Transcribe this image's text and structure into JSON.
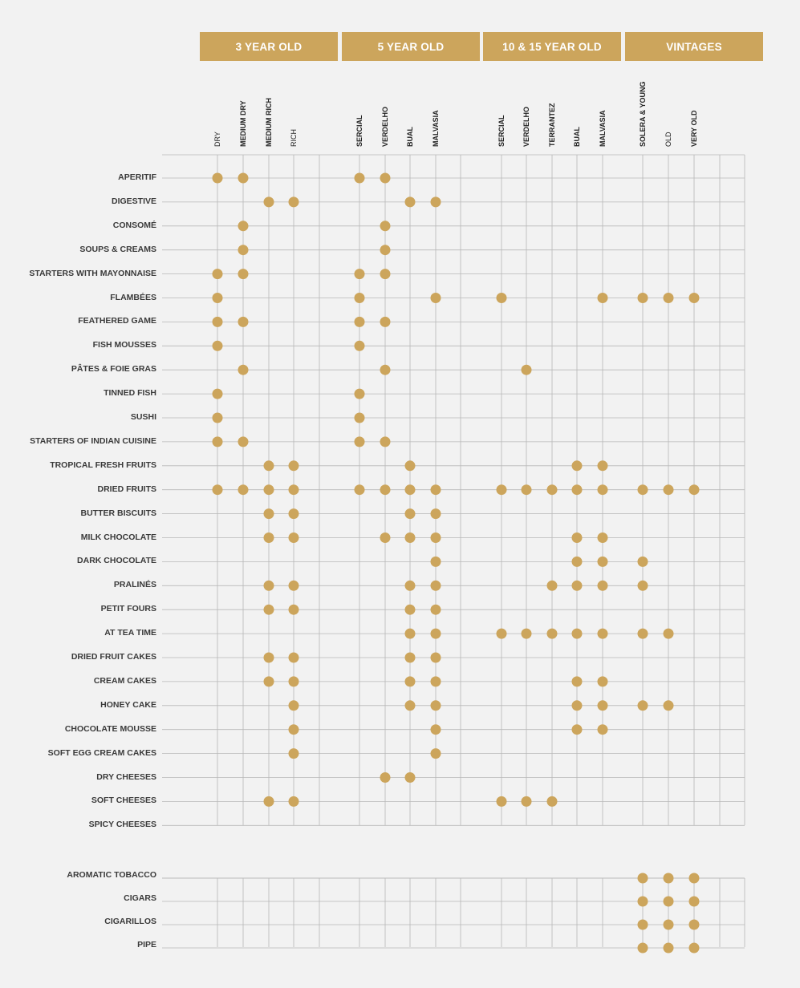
{
  "colors": {
    "accent": "#cca55c",
    "grid": "#b7b7b7",
    "background": "#f2f2f2"
  },
  "chart_data": {
    "type": "table",
    "column_groups": [
      {
        "label": "3 YEAR OLD",
        "columns": [
          "DRY",
          "MEDIUM DRY",
          "MEDIUM RICH",
          "RICH"
        ]
      },
      {
        "label": "5 YEAR OLD",
        "columns": [
          "SERCIAL",
          "VERDELHO",
          "BUAL",
          "MALVASIA"
        ]
      },
      {
        "label": "10 & 15 YEAR OLD",
        "columns": [
          "SERCIAL",
          "VERDELHO",
          "TERRANTEZ",
          "BUAL",
          "MALVASIA"
        ]
      },
      {
        "label": "VINTAGES",
        "columns": [
          "SOLERA & YOUNG",
          "OLD",
          "VERY OLD"
        ]
      }
    ],
    "sections": [
      {
        "rows": [
          {
            "label": "APERITIF",
            "marks": [
              0,
              1,
              4,
              5
            ]
          },
          {
            "label": "DIGESTIVE",
            "marks": [
              2,
              3,
              6,
              7
            ]
          },
          {
            "label": "CONSOMÉ",
            "marks": [
              1,
              5
            ]
          },
          {
            "label": "SOUPS & CREAMS",
            "marks": [
              1,
              5
            ]
          },
          {
            "label": "STARTERS WITH MAYONNAISE",
            "marks": [
              0,
              1,
              4,
              5
            ]
          },
          {
            "label": "FLAMBÉES",
            "marks": [
              0,
              4,
              7,
              8,
              12,
              13,
              14,
              15
            ]
          },
          {
            "label": "FEATHERED GAME",
            "marks": [
              0,
              1,
              4,
              5
            ]
          },
          {
            "label": "FISH MOUSSES",
            "marks": [
              0,
              4
            ]
          },
          {
            "label": "PÂTES & FOIE GRAS",
            "marks": [
              1,
              5,
              9
            ]
          },
          {
            "label": "TINNED FISH",
            "marks": [
              0,
              4
            ]
          },
          {
            "label": "SUSHI",
            "marks": [
              0,
              4
            ]
          },
          {
            "label": "STARTERS OF INDIAN CUISINE",
            "marks": [
              0,
              1,
              4,
              5
            ]
          },
          {
            "label": "TROPICAL FRESH FRUITS",
            "marks": [
              2,
              3,
              6,
              11,
              12
            ]
          },
          {
            "label": "DRIED FRUITS",
            "marks": [
              0,
              1,
              2,
              3,
              4,
              5,
              6,
              7,
              8,
              9,
              10,
              11,
              12,
              13,
              14,
              15
            ]
          },
          {
            "label": "BUTTER BISCUITS",
            "marks": [
              2,
              3,
              6,
              7
            ]
          },
          {
            "label": "MILK CHOCOLATE",
            "marks": [
              2,
              3,
              5,
              6,
              7,
              11,
              12
            ]
          },
          {
            "label": "DARK CHOCOLATE",
            "marks": [
              7,
              11,
              12,
              13
            ]
          },
          {
            "label": "PRALINÉS",
            "marks": [
              2,
              3,
              6,
              7,
              10,
              11,
              12,
              13
            ]
          },
          {
            "label": "PETIT FOURS",
            "marks": [
              2,
              3,
              6,
              7
            ]
          },
          {
            "label": "AT TEA TIME",
            "marks": [
              6,
              7,
              8,
              9,
              10,
              11,
              12,
              13,
              14
            ]
          },
          {
            "label": "DRIED FRUIT CAKES",
            "marks": [
              2,
              3,
              6,
              7
            ]
          },
          {
            "label": "CREAM CAKES",
            "marks": [
              2,
              3,
              6,
              7,
              11,
              12
            ]
          },
          {
            "label": "HONEY CAKE",
            "marks": [
              3,
              6,
              7,
              11,
              12,
              13,
              14
            ]
          },
          {
            "label": "CHOCOLATE MOUSSE",
            "marks": [
              3,
              7,
              11,
              12
            ]
          },
          {
            "label": "SOFT EGG CREAM CAKES",
            "marks": [
              3,
              7
            ]
          },
          {
            "label": "DRY CHEESES",
            "marks": [
              5,
              6
            ]
          },
          {
            "label": "SOFT CHEESES",
            "marks": [
              2,
              3,
              8,
              9,
              10
            ]
          },
          {
            "label": "SPICY CHEESES",
            "marks": []
          }
        ]
      },
      {
        "rows": [
          {
            "label": "AROMATIC TOBACCO",
            "marks": [
              13,
              14,
              15
            ]
          },
          {
            "label": "CIGARS",
            "marks": [
              13,
              14,
              15
            ]
          },
          {
            "label": "CIGARILLOS",
            "marks": [
              13,
              14,
              15
            ]
          },
          {
            "label": "PIPE",
            "marks": [
              13,
              14,
              15
            ]
          }
        ]
      }
    ]
  }
}
